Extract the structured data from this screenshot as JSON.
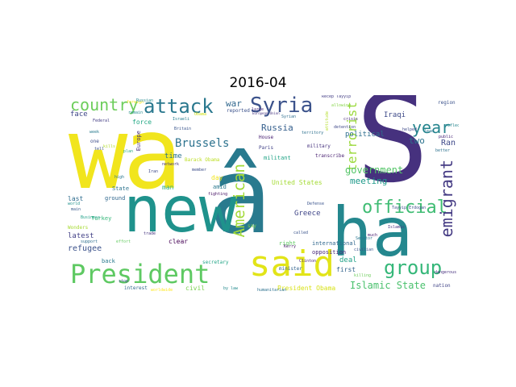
{
  "title": "2016-04",
  "words": [
    {
      "text": "wa",
      "color": "#f1e51d"
    },
    {
      "text": "â",
      "color": "#297a8e"
    },
    {
      "text": "S",
      "color": "#46317e"
    },
    {
      "text": "new",
      "color": "#1f928c"
    },
    {
      "text": "ha",
      "color": "#24878e"
    },
    {
      "text": "said",
      "color": "#e2e418"
    },
    {
      "text": "President",
      "color": "#5ec962"
    },
    {
      "text": "Syria",
      "color": "#3b528b"
    },
    {
      "text": "attack",
      "color": "#2a788e"
    },
    {
      "text": "country",
      "color": "#6ccd5a"
    },
    {
      "text": "group",
      "color": "#35b779"
    },
    {
      "text": "official",
      "color": "#3fbc73"
    },
    {
      "text": "year",
      "color": "#25858e"
    },
    {
      "text": "emigrant",
      "color": "#443a83"
    },
    {
      "text": "American",
      "color": "#a2da37"
    },
    {
      "text": "terrorist",
      "color": "#9bd93c"
    },
    {
      "text": "Brussels",
      "color": "#2c728e"
    },
    {
      "text": "Islamic State",
      "color": "#4ac16d"
    },
    {
      "text": "government",
      "color": "#54c568"
    },
    {
      "text": "Russia",
      "color": "#355f8d"
    },
    {
      "text": "war",
      "color": "#31688e"
    },
    {
      "text": "meeting",
      "color": "#1f9a8a"
    },
    {
      "text": "two",
      "color": "#2c738e"
    },
    {
      "text": "Ran",
      "color": "#3e4989"
    },
    {
      "text": "latest",
      "color": "#424086"
    },
    {
      "text": "refugee",
      "color": "#3b528b"
    },
    {
      "text": "Greece",
      "color": "#404688"
    },
    {
      "text": "President Obama",
      "color": "#d8e219"
    },
    {
      "text": "United States",
      "color": "#a5db36"
    },
    {
      "text": "international",
      "color": "#31688e"
    },
    {
      "text": "opposition",
      "color": "#482878"
    },
    {
      "text": "first",
      "color": "#33638d"
    },
    {
      "text": "deal",
      "color": "#1fa187"
    },
    {
      "text": "political",
      "color": "#2e6e8e"
    },
    {
      "text": "Iraqi",
      "color": "#3e4a89"
    },
    {
      "text": "time",
      "color": "#2c738e"
    },
    {
      "text": "day",
      "color": "#f1e51d"
    },
    {
      "text": "man",
      "color": "#29af7f"
    },
    {
      "text": "amid",
      "color": "#2a788e"
    },
    {
      "text": "House",
      "color": "#482173"
    },
    {
      "text": "militant",
      "color": "#20a386"
    },
    {
      "text": "minister",
      "color": "#33638d"
    },
    {
      "text": "secretary",
      "color": "#20a486"
    },
    {
      "text": "clear",
      "color": "#440154"
    },
    {
      "text": "civil",
      "color": "#7ad151"
    },
    {
      "text": "interest",
      "color": "#31678e"
    },
    {
      "text": "nation",
      "color": "#414487"
    },
    {
      "text": "face",
      "color": "#3f4788"
    },
    {
      "text": "force",
      "color": "#22a884"
    },
    {
      "text": "Turkey",
      "color": "#35b779"
    },
    {
      "text": "Europe",
      "color": "#472d7b"
    },
    {
      "text": "State",
      "color": "#2c738e"
    },
    {
      "text": "ground",
      "color": "#31688e"
    },
    {
      "text": "last",
      "color": "#2f6c8e"
    },
    {
      "text": "right",
      "color": "#5ec962"
    },
    {
      "text": "back",
      "color": "#297a8e"
    },
    {
      "text": "Paris",
      "color": "#414287"
    },
    {
      "text": "reported",
      "color": "#3b518b"
    },
    {
      "text": "say",
      "color": "#7fd34e"
    },
    {
      "text": "military",
      "color": "#46327e"
    },
    {
      "text": "transcribe",
      "color": "#481f70"
    },
    {
      "text": "one",
      "color": "#3d4d8a"
    },
    {
      "text": "Barack Obama",
      "color": "#bddf26"
    },
    {
      "text": "region",
      "color": "#3b528b"
    },
    {
      "text": "dangerous",
      "color": "#46307e"
    },
    {
      "text": "Senator",
      "color": "#2a768e"
    },
    {
      "text": "humanitarian",
      "color": "#2c718e"
    },
    {
      "text": "worldwide",
      "color": "#fde725"
    },
    {
      "text": "Islamic",
      "color": "#46337f"
    },
    {
      "text": "Tayyip Erdogan",
      "color": "#3b528b"
    },
    {
      "text": "Recep Tayyip",
      "color": "#433e85"
    },
    {
      "text": "allowing",
      "color": "#86d549"
    },
    {
      "text": "attitude",
      "color": "#b5de2b"
    },
    {
      "text": "Clinton",
      "color": "#482475"
    },
    {
      "text": "civilian",
      "color": "#39568c"
    },
    {
      "text": "killing",
      "color": "#6ccd5a"
    },
    {
      "text": "Defense",
      "color": "#3a548c"
    },
    {
      "text": "support",
      "color": "#2e6f8e"
    },
    {
      "text": "effort",
      "color": "#63cb5f"
    },
    {
      "text": "Wonders",
      "color": "#a8db34"
    },
    {
      "text": "Business",
      "color": "#1fa088"
    },
    {
      "text": "high",
      "color": "#2a778e"
    },
    {
      "text": "fighting",
      "color": "#471365"
    },
    {
      "text": "plan",
      "color": "#25ab82"
    },
    {
      "text": "week",
      "color": "#297b8e"
    },
    {
      "text": "better",
      "color": "#2d718e"
    },
    {
      "text": "public",
      "color": "#482677"
    },
    {
      "text": "helped",
      "color": "#3e4a89"
    },
    {
      "text": "Israeli",
      "color": "#287d8e"
    },
    {
      "text": "Federal",
      "color": "#433d84"
    },
    {
      "text": "member",
      "color": "#3d4e8a"
    },
    {
      "text": "territory",
      "color": "#2d708e"
    },
    {
      "text": "detention",
      "color": "#3f4889"
    },
    {
      "text": "large",
      "color": "#472f7d"
    },
    {
      "text": "reflect",
      "color": "#25858e"
    },
    {
      "text": "foreign",
      "color": "#f8e621"
    },
    {
      "text": "tell",
      "color": "#3b528b"
    },
    {
      "text": "stop",
      "color": "#3c508b"
    },
    {
      "text": "world",
      "color": "#21918c"
    },
    {
      "text": "European Union",
      "color": "#463480"
    },
    {
      "text": "kills",
      "color": "#b2dd2d"
    },
    {
      "text": "main",
      "color": "#38598c"
    },
    {
      "text": "much",
      "color": "#481c6e"
    },
    {
      "text": "called",
      "color": "#3a538b"
    },
    {
      "text": "Kerry",
      "color": "#48186a"
    },
    {
      "text": "network",
      "color": "#453581"
    },
    {
      "text": "trade",
      "color": "#45337f"
    },
    {
      "text": "Russian",
      "color": "#23898e"
    },
    {
      "text": "Iran",
      "color": "#3e4989"
    },
    {
      "text": "Syrian",
      "color": "#2e6e8e"
    },
    {
      "text": "remain",
      "color": "#228c8d"
    },
    {
      "text": "Obama",
      "color": "#d2e21b"
    },
    {
      "text": "Britain",
      "color": "#39558c"
    },
    {
      "text": "crisis",
      "color": "#472c7a"
    },
    {
      "text": "lead",
      "color": "#2b758e"
    },
    {
      "text": "by law",
      "color": "#238a8d"
    }
  ]
}
